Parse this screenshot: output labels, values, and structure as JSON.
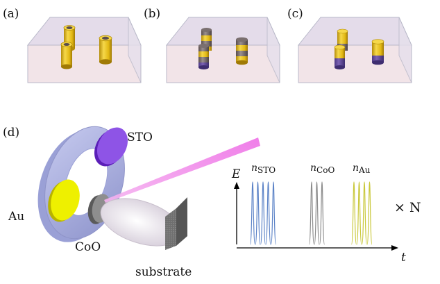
{
  "panels": {
    "a": {
      "label": "(a)"
    },
    "b": {
      "label": "(b)"
    },
    "c": {
      "label": "(c)"
    },
    "d": {
      "label": "(d)"
    }
  },
  "targets": {
    "sto": "STO",
    "au": "Au",
    "coo": "CoO",
    "substrate": "substrate"
  },
  "pulse_plot": {
    "y_axis": "E",
    "x_axis": "t",
    "repeat": "× N",
    "groups": [
      {
        "label_base": "n",
        "label_sub": "STO",
        "pulses": 5,
        "color": "#5c83c7"
      },
      {
        "label_base": "n",
        "label_sub": "CoO",
        "pulses": 3,
        "color": "#8c8c8c"
      },
      {
        "label_base": "n",
        "label_sub": "Au",
        "pulses": 4,
        "color": "#c9c83a"
      }
    ]
  },
  "colors": {
    "gold": "#e8c81a",
    "coo_gray": "#807676",
    "sto_purple": "#8e54c8",
    "laser": "#ee82ee",
    "block_face": "#f3e6e9",
    "block_top": "#e2dcea"
  }
}
